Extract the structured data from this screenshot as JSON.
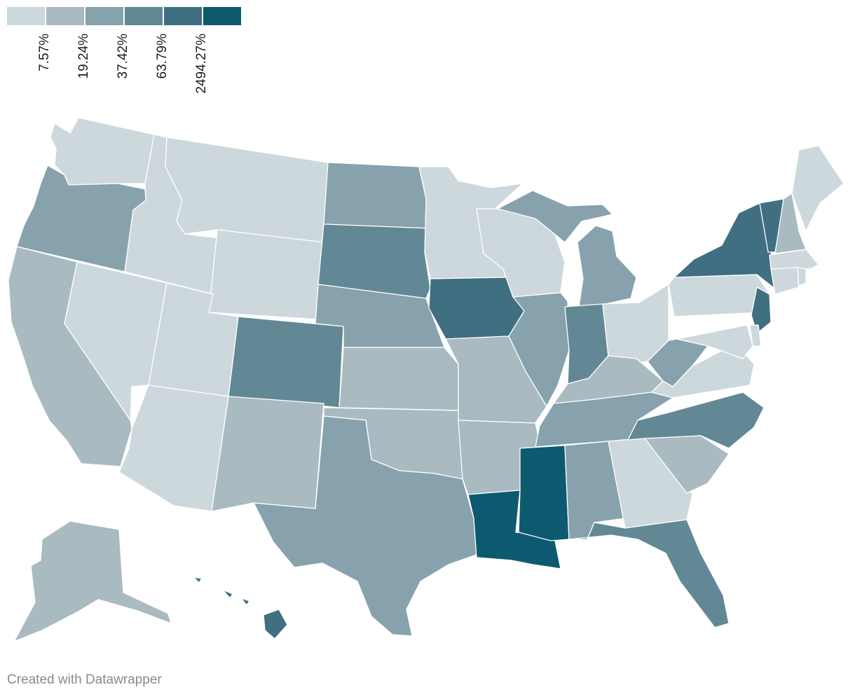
{
  "legend": {
    "colors": [
      "#cdd8dd",
      "#a9bac1",
      "#87a2ac",
      "#628895",
      "#406f81",
      "#0d5a70"
    ],
    "breaks": [
      "7.57%",
      "19.24%",
      "37.42%",
      "63.79%",
      "2494.27%"
    ]
  },
  "footer": {
    "credit": "Created with Datawrapper"
  },
  "map": {
    "states": [
      {
        "id": "WA",
        "bin": 0
      },
      {
        "id": "OR",
        "bin": 2
      },
      {
        "id": "CA",
        "bin": 1
      },
      {
        "id": "ID",
        "bin": 0
      },
      {
        "id": "NV",
        "bin": 0
      },
      {
        "id": "MT",
        "bin": 0
      },
      {
        "id": "WY",
        "bin": 0
      },
      {
        "id": "UT",
        "bin": 0
      },
      {
        "id": "AZ",
        "bin": 0
      },
      {
        "id": "CO",
        "bin": 3
      },
      {
        "id": "NM",
        "bin": 1
      },
      {
        "id": "ND",
        "bin": 2
      },
      {
        "id": "SD",
        "bin": 3
      },
      {
        "id": "NE",
        "bin": 2
      },
      {
        "id": "KS",
        "bin": 1
      },
      {
        "id": "OK",
        "bin": 1
      },
      {
        "id": "TX",
        "bin": 2
      },
      {
        "id": "MN",
        "bin": 0
      },
      {
        "id": "IA",
        "bin": 4
      },
      {
        "id": "MO",
        "bin": 1
      },
      {
        "id": "AR",
        "bin": 1
      },
      {
        "id": "LA",
        "bin": 5
      },
      {
        "id": "WI",
        "bin": 0
      },
      {
        "id": "IL",
        "bin": 2
      },
      {
        "id": "MI",
        "bin": 2
      },
      {
        "id": "MI-UP",
        "bin": 2
      },
      {
        "id": "IN",
        "bin": 3
      },
      {
        "id": "OH",
        "bin": 0
      },
      {
        "id": "KY",
        "bin": 1
      },
      {
        "id": "TN",
        "bin": 2
      },
      {
        "id": "MS",
        "bin": 5
      },
      {
        "id": "AL",
        "bin": 2
      },
      {
        "id": "GA",
        "bin": 0
      },
      {
        "id": "FL",
        "bin": 3
      },
      {
        "id": "SC",
        "bin": 1
      },
      {
        "id": "NC",
        "bin": 3
      },
      {
        "id": "VA",
        "bin": 0
      },
      {
        "id": "WV",
        "bin": 2
      },
      {
        "id": "PA",
        "bin": 0
      },
      {
        "id": "NY",
        "bin": 4
      },
      {
        "id": "VT",
        "bin": 4
      },
      {
        "id": "NH",
        "bin": 1
      },
      {
        "id": "ME",
        "bin": 0
      },
      {
        "id": "MA",
        "bin": 0
      },
      {
        "id": "CT",
        "bin": 0
      },
      {
        "id": "RI",
        "bin": 0
      },
      {
        "id": "NJ",
        "bin": 4
      },
      {
        "id": "DE",
        "bin": 0
      },
      {
        "id": "MD",
        "bin": 0
      },
      {
        "id": "AK",
        "bin": 1
      },
      {
        "id": "HI",
        "bin": 4
      }
    ]
  }
}
